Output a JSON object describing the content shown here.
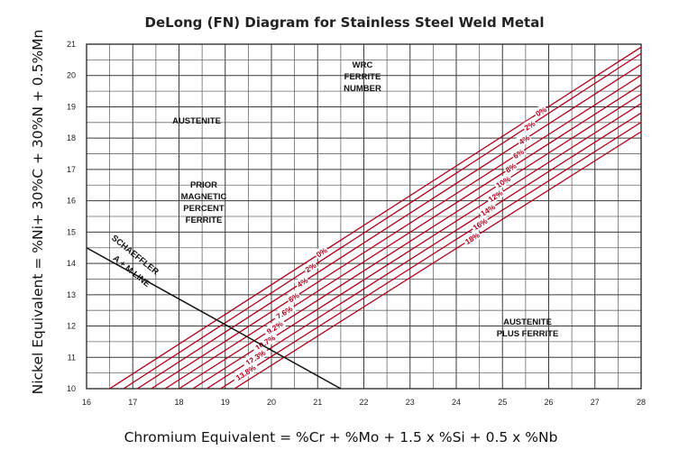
{
  "chart_data": {
    "type": "line",
    "title": "DeLong (FN) Diagram for Stainless Steel Weld Metal",
    "xlabel": "Chromium Equivalent = %Cr + %Mo + 1.5 x %Si + 0.5 x %Nb",
    "ylabel": "Nickel Equivalent = %Ni+ 30%C + 30%N + 0.5%Mn",
    "xlim": [
      16,
      28
    ],
    "ylim": [
      10,
      21
    ],
    "x_ticks": [
      "16",
      "17",
      "18",
      "19",
      "20",
      "21",
      "22",
      "23",
      "24",
      "25",
      "26",
      "27",
      "28"
    ],
    "y_ticks": [
      "10",
      "11",
      "12",
      "13",
      "14",
      "15",
      "16",
      "17",
      "18",
      "19",
      "20",
      "21"
    ],
    "grid": true,
    "line_color": "#b3001b",
    "schaeffler_line": {
      "points": [
        [
          16,
          14.5
        ],
        [
          21.5,
          10
        ]
      ],
      "label_line1": "SCHAEFFLER",
      "label_line2": "A + M LINE"
    },
    "region_labels": {
      "austenite": "AUSTENITE",
      "prior_magnetic": [
        "PRIOR",
        "MAGNETIC",
        "PERCENT",
        "FERRITE"
      ],
      "wrc": [
        "WRC",
        "FERRITE",
        "NUMBER"
      ],
      "austenite_ferrite": [
        "AUSTENITE",
        "PLUS FERRITE"
      ]
    },
    "series": [
      {
        "points": [
          [
            16.5,
            10
          ],
          [
            28.1,
            21
          ]
        ],
        "wrc_label": "0%",
        "prior_label": "0%"
      },
      {
        "points": [
          [
            16.8,
            10
          ],
          [
            28.1,
            20.8
          ]
        ],
        "wrc_label": "2%",
        "prior_label": "2%"
      },
      {
        "points": [
          [
            17.1,
            10
          ],
          [
            28.1,
            20.45
          ]
        ],
        "wrc_label": "4%",
        "prior_label": "4%"
      },
      {
        "points": [
          [
            17.4,
            10
          ],
          [
            28.1,
            20.1
          ]
        ],
        "wrc_label": "6%",
        "prior_label": "6%"
      },
      {
        "points": [
          [
            17.7,
            10
          ],
          [
            28.1,
            19.8
          ]
        ],
        "wrc_label": "8%",
        "prior_label": "7.6%"
      },
      {
        "points": [
          [
            18.0,
            10
          ],
          [
            28.1,
            19.5
          ]
        ],
        "wrc_label": "10%",
        "prior_label": "9.2%"
      },
      {
        "points": [
          [
            18.3,
            10
          ],
          [
            28.1,
            19.2
          ]
        ],
        "wrc_label": "12%",
        "prior_label": "10.7%"
      },
      {
        "points": [
          [
            18.6,
            10
          ],
          [
            28.1,
            18.9
          ]
        ],
        "wrc_label": "14%",
        "prior_label": "12.3%"
      },
      {
        "points": [
          [
            18.9,
            10
          ],
          [
            28.1,
            18.6
          ]
        ],
        "wrc_label": "16%",
        "prior_label": "13.8%"
      },
      {
        "points": [
          [
            19.2,
            10
          ],
          [
            28.1,
            18.3
          ]
        ],
        "wrc_label": "18%",
        "prior_label": ""
      }
    ]
  }
}
